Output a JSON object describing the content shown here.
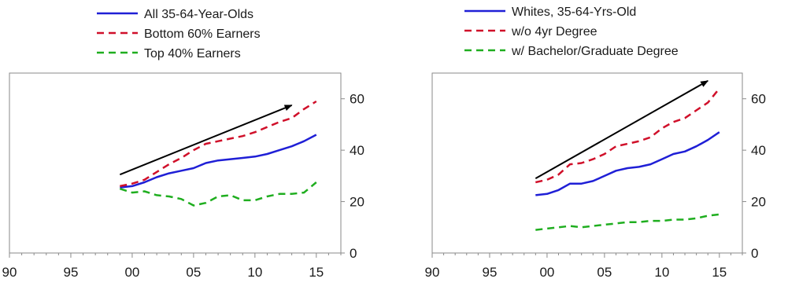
{
  "chart_data": [
    {
      "type": "line",
      "title": "",
      "xlabel": "",
      "ylabel": "",
      "xlim": [
        1990,
        2017
      ],
      "ylim": [
        0,
        70
      ],
      "x_ticks": [
        1990,
        1995,
        2000,
        2005,
        2010,
        2015
      ],
      "x_tick_labels": [
        "90",
        "95",
        "00",
        "05",
        "10",
        "15"
      ],
      "y_ticks": [
        0,
        20,
        40,
        60
      ],
      "y_tick_labels": [
        "0",
        "20",
        "40",
        "60"
      ],
      "y_axis_side": "right",
      "grid": false,
      "legend_position": "top",
      "series": [
        {
          "name": "All 35-64-Year-Olds",
          "color": "#1f1fd6",
          "dash": "solid",
          "x": [
            1999,
            2000,
            2001,
            2002,
            2003,
            2004,
            2005,
            2006,
            2007,
            2008,
            2009,
            2010,
            2011,
            2012,
            2013,
            2014,
            2015
          ],
          "values": [
            25.5,
            26.0,
            27.5,
            29.5,
            31.0,
            32.0,
            33.0,
            35.0,
            36.0,
            36.5,
            37.0,
            37.5,
            38.5,
            40.0,
            41.5,
            43.5,
            46.0
          ]
        },
        {
          "name": "Bottom 60% Earners",
          "color": "#d0102a",
          "dash": "dashed",
          "x": [
            1999,
            2000,
            2001,
            2002,
            2003,
            2004,
            2005,
            2006,
            2007,
            2008,
            2009,
            2010,
            2011,
            2012,
            2013,
            2014,
            2015
          ],
          "values": [
            26.0,
            27.0,
            28.5,
            31.5,
            34.5,
            37.0,
            40.0,
            42.5,
            43.5,
            44.5,
            45.5,
            47.0,
            49.0,
            51.0,
            52.5,
            56.0,
            59.0
          ]
        },
        {
          "name": "Top 40% Earners",
          "color": "#1fae1f",
          "dash": "dashed",
          "x": [
            1999,
            2000,
            2001,
            2002,
            2003,
            2004,
            2005,
            2006,
            2007,
            2008,
            2009,
            2010,
            2011,
            2012,
            2013,
            2014,
            2015
          ],
          "values": [
            25.0,
            23.5,
            24.0,
            22.5,
            22.0,
            21.0,
            18.5,
            19.5,
            22.0,
            22.5,
            20.5,
            20.5,
            22.0,
            23.0,
            23.0,
            23.5,
            27.5
          ]
        }
      ],
      "annotations": [
        {
          "type": "arrow",
          "from": [
            1999,
            30.5
          ],
          "to": [
            2013,
            57.5
          ],
          "color": "#000000"
        }
      ]
    },
    {
      "type": "line",
      "title": "",
      "xlabel": "",
      "ylabel": "",
      "xlim": [
        1990,
        2017
      ],
      "ylim": [
        0,
        70
      ],
      "x_ticks": [
        1990,
        1995,
        2000,
        2005,
        2010,
        2015
      ],
      "x_tick_labels": [
        "90",
        "95",
        "00",
        "05",
        "10",
        "15"
      ],
      "y_ticks": [
        0,
        20,
        40,
        60
      ],
      "y_tick_labels": [
        "0",
        "20",
        "40",
        "60"
      ],
      "y_axis_side": "right",
      "grid": false,
      "legend_position": "top",
      "series": [
        {
          "name": "Whites, 35-64-Yrs-Old",
          "color": "#1f1fd6",
          "dash": "solid",
          "x": [
            1999,
            2000,
            2001,
            2002,
            2003,
            2004,
            2005,
            2006,
            2007,
            2008,
            2009,
            2010,
            2011,
            2012,
            2013,
            2014,
            2015
          ],
          "values": [
            22.5,
            23.0,
            24.5,
            27.0,
            27.0,
            28.0,
            30.0,
            32.0,
            33.0,
            33.5,
            34.5,
            36.5,
            38.5,
            39.5,
            41.5,
            44.0,
            47.0
          ]
        },
        {
          "name": "w/o 4yr Degree",
          "color": "#d0102a",
          "dash": "dashed",
          "x": [
            1999,
            2000,
            2001,
            2002,
            2003,
            2004,
            2005,
            2006,
            2007,
            2008,
            2009,
            2010,
            2011,
            2012,
            2013,
            2014,
            2015
          ],
          "values": [
            27.5,
            28.5,
            30.5,
            34.5,
            35.0,
            36.5,
            38.5,
            41.5,
            42.5,
            43.5,
            45.0,
            48.5,
            51.0,
            52.5,
            55.5,
            58.5,
            64.0
          ]
        },
        {
          "name": "w/ Bachelor/Graduate Degree",
          "color": "#1fae1f",
          "dash": "dashed",
          "x": [
            1999,
            2000,
            2001,
            2002,
            2003,
            2004,
            2005,
            2006,
            2007,
            2008,
            2009,
            2010,
            2011,
            2012,
            2013,
            2014,
            2015
          ],
          "values": [
            9.0,
            9.5,
            10.0,
            10.5,
            10.0,
            10.5,
            11.0,
            11.5,
            12.0,
            12.0,
            12.5,
            12.5,
            13.0,
            13.0,
            13.5,
            14.5,
            15.0
          ]
        }
      ],
      "annotations": [
        {
          "type": "arrow",
          "from": [
            1999,
            29.0
          ],
          "to": [
            2014,
            67.0
          ],
          "color": "#000000"
        }
      ]
    }
  ]
}
